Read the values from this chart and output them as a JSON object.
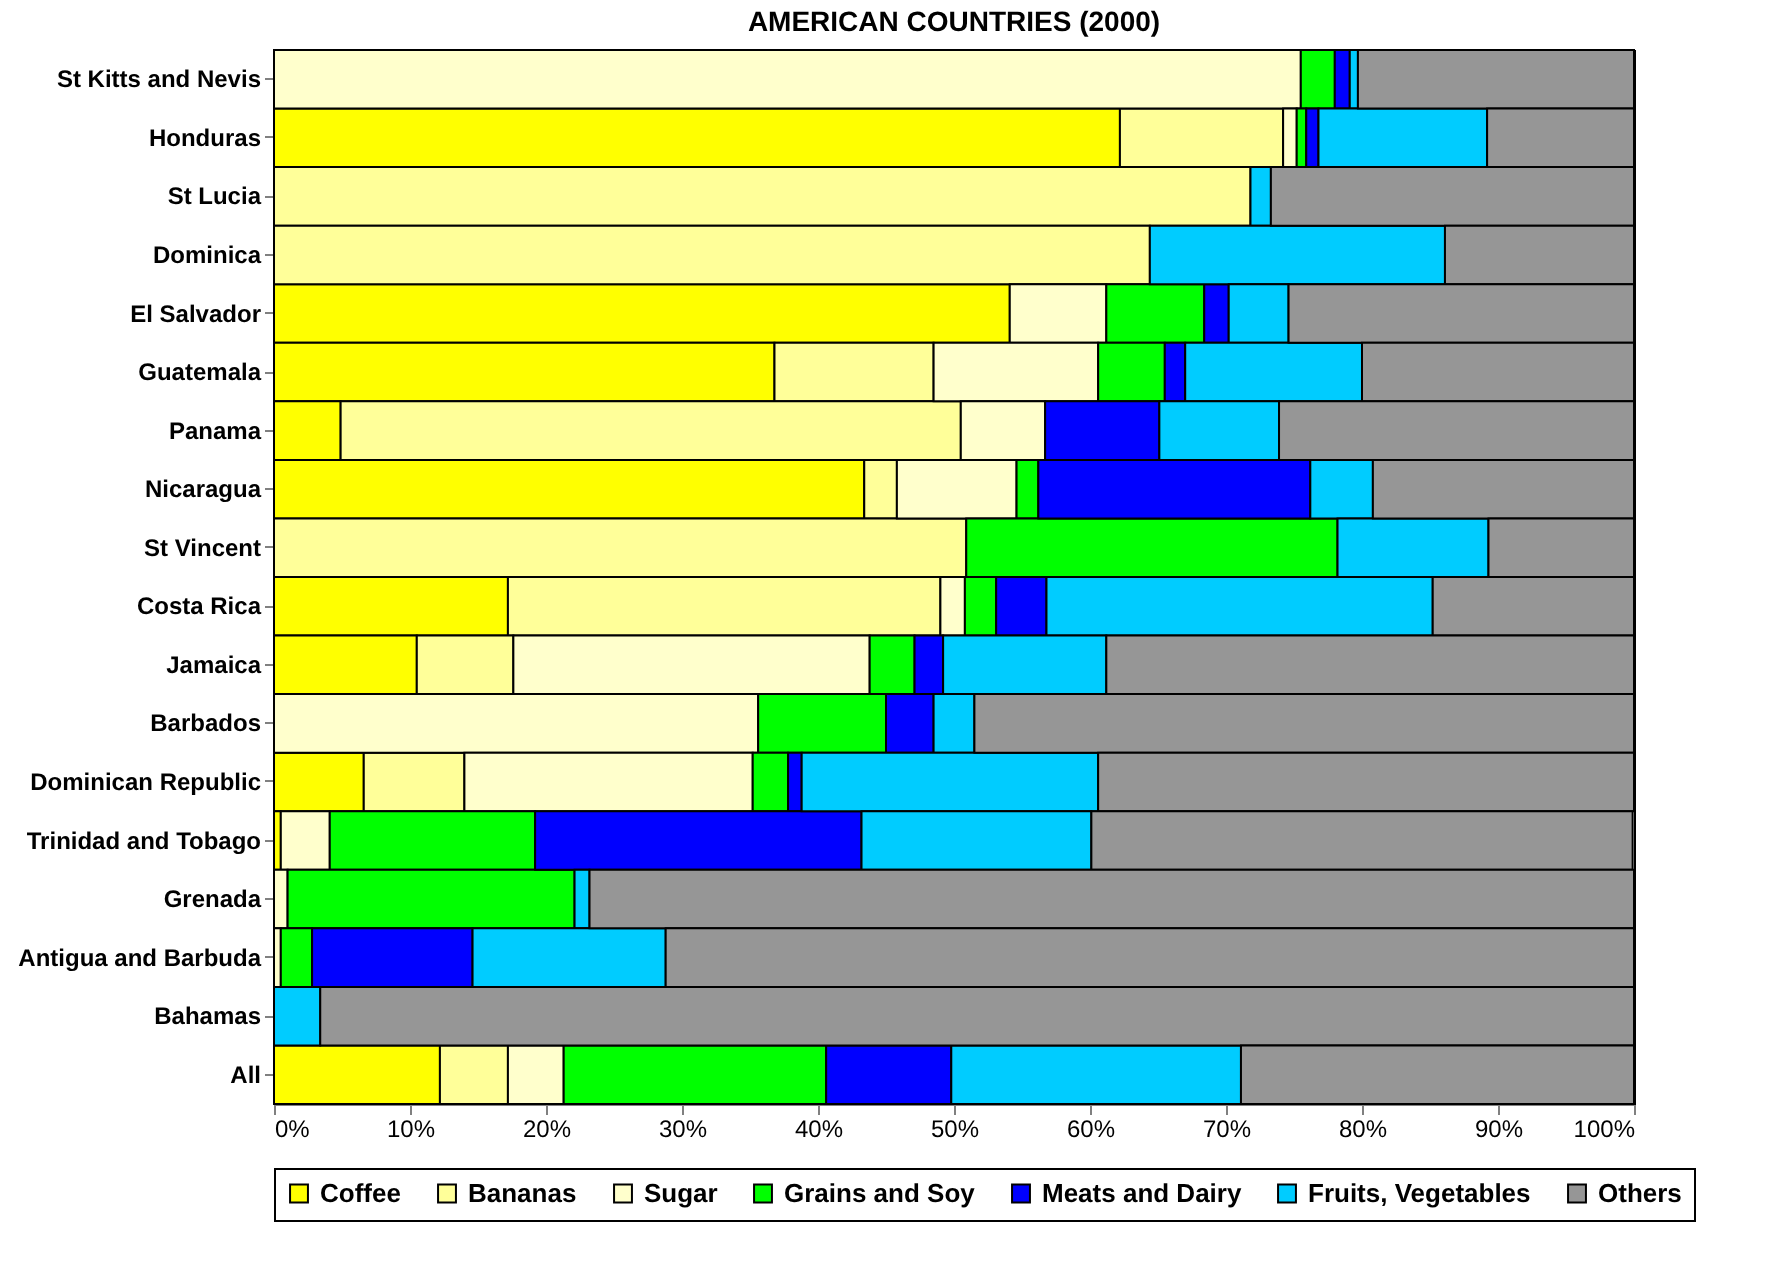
{
  "chart_data": {
    "type": "bar",
    "orientation": "horizontal",
    "stacked": true,
    "title": "AMERICAN COUNTRIES (2000)",
    "categories": [
      "St Kitts and Nevis",
      "Honduras",
      "St Lucia",
      "Dominica",
      "El Salvador",
      "Guatemala",
      "Panama",
      "Nicaragua",
      "St Vincent",
      "Costa Rica",
      "Jamaica",
      "Barbados",
      "Dominican Republic",
      "Trinidad and Tobago",
      "Grenada",
      "Antigua and Barbuda",
      "Bahamas",
      "All"
    ],
    "series": [
      {
        "name": "Coffee",
        "color": "#ffff00",
        "values": [
          null,
          62.2,
          null,
          null,
          54.1,
          36.8,
          4.9,
          43.4,
          null,
          17.2,
          10.5,
          null,
          6.6,
          0.5,
          null,
          null,
          null,
          12.2
        ]
      },
      {
        "name": "Bananas",
        "color": "#ffff99",
        "values": [
          null,
          12.0,
          71.8,
          64.4,
          null,
          11.7,
          45.6,
          2.4,
          50.9,
          31.8,
          7.1,
          null,
          7.4,
          null,
          null,
          null,
          null,
          5.0
        ]
      },
      {
        "name": "Sugar",
        "color": "#ffffcc",
        "values": [
          75.5,
          1.0,
          null,
          null,
          7.1,
          12.1,
          6.2,
          8.8,
          null,
          1.8,
          26.2,
          35.6,
          21.2,
          3.6,
          1.0,
          0.5,
          null,
          4.1
        ]
      },
      {
        "name": "Grains and Soy",
        "color": "#00ff00",
        "values": [
          2.5,
          0.7,
          null,
          null,
          7.2,
          4.9,
          null,
          1.6,
          27.3,
          2.3,
          3.3,
          9.4,
          2.6,
          15.1,
          21.1,
          2.3,
          null,
          19.3
        ]
      },
      {
        "name": "Meats and Dairy",
        "color": "#0000ff",
        "values": [
          1.1,
          0.9,
          null,
          null,
          1.8,
          1.5,
          8.4,
          20.0,
          null,
          3.7,
          2.1,
          3.5,
          1.0,
          24.0,
          null,
          11.8,
          null,
          9.2
        ]
      },
      {
        "name": "Fruits, Vegetables",
        "color": "#00ccff",
        "values": [
          0.6,
          12.4,
          1.5,
          21.7,
          4.4,
          13.0,
          8.8,
          4.6,
          11.1,
          28.4,
          12.0,
          3.0,
          21.8,
          16.9,
          1.1,
          14.2,
          3.4,
          21.3
        ]
      },
      {
        "name": "Others",
        "color": "#969696",
        "values": [
          20.3,
          10.8,
          26.7,
          13.9,
          25.4,
          20.0,
          26.1,
          19.2,
          10.7,
          14.8,
          38.8,
          48.5,
          39.4,
          39.8,
          76.8,
          71.2,
          96.6,
          28.9
        ]
      }
    ],
    "xlim": [
      0,
      100
    ],
    "xticks": [
      {
        "value": 0,
        "label": "0%"
      },
      {
        "value": 10,
        "label": "10%"
      },
      {
        "value": 20,
        "label": "20%"
      },
      {
        "value": 30,
        "label": "30%"
      },
      {
        "value": 40,
        "label": "40%"
      },
      {
        "value": 50,
        "label": "50%"
      },
      {
        "value": 60,
        "label": "60%"
      },
      {
        "value": 70,
        "label": "70%"
      },
      {
        "value": 80,
        "label": "80%"
      },
      {
        "value": 90,
        "label": "90%"
      },
      {
        "value": 100,
        "label": "100%"
      }
    ],
    "grid": false,
    "legend": "bottom"
  }
}
